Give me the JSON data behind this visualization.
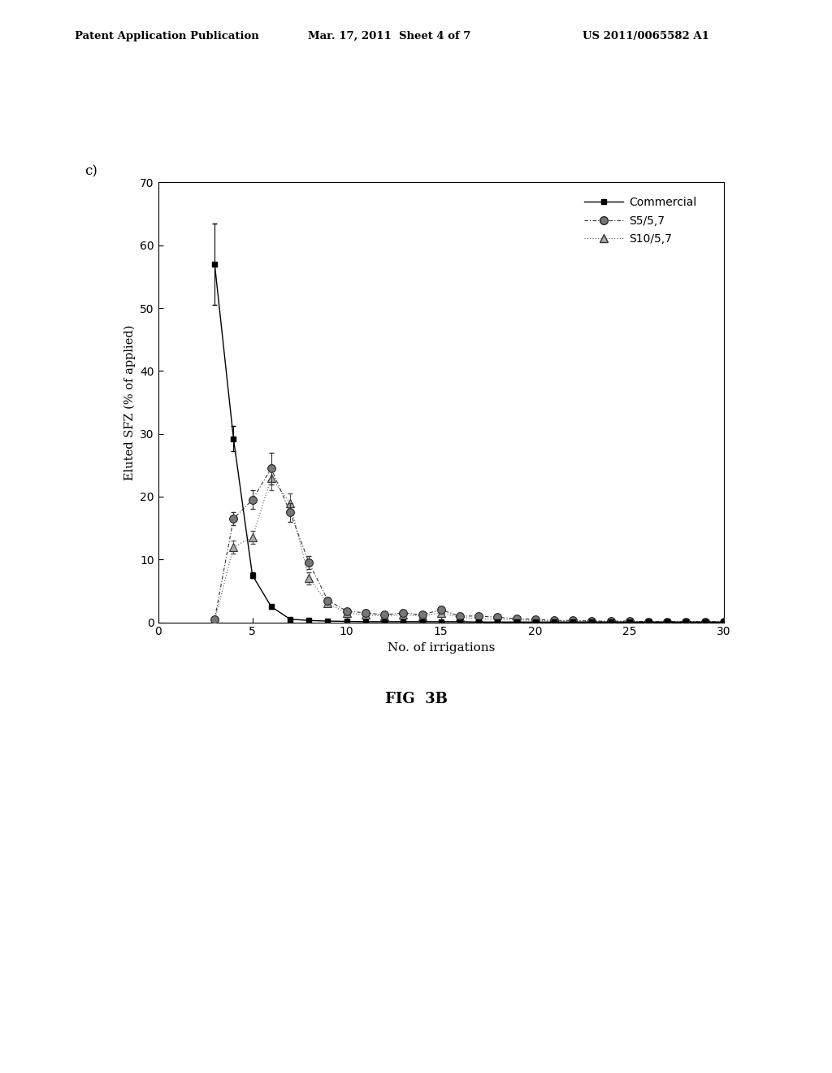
{
  "title_label": "c)",
  "xlabel": "No. of irrigations",
  "ylabel": "Eluted SFZ (% of applied)",
  "xlim": [
    2,
    30
  ],
  "ylim": [
    0,
    70
  ],
  "xticks": [
    0,
    5,
    10,
    15,
    20,
    25,
    30
  ],
  "yticks": [
    0,
    10,
    20,
    30,
    40,
    50,
    60,
    70
  ],
  "fig_label": "FIG  3B",
  "header_left": "Patent Application Publication",
  "header_mid": "Mar. 17, 2011  Sheet 4 of 7",
  "header_right": "US 2011/0065582 A1",
  "commercial": {
    "x": [
      3,
      4,
      5,
      6,
      7,
      8,
      9,
      10,
      11,
      12,
      13,
      14,
      15,
      16,
      17,
      18,
      19,
      20,
      21,
      22,
      23,
      24,
      25,
      26,
      27,
      28,
      29,
      30
    ],
    "y": [
      57.0,
      29.2,
      7.5,
      2.5,
      0.5,
      0.3,
      0.2,
      0.15,
      0.1,
      0.1,
      0.1,
      0.1,
      0.1,
      0.1,
      0.05,
      0.05,
      0.05,
      0.05,
      0.05,
      0.05,
      0.05,
      0.05,
      0.05,
      0.05,
      0.05,
      0.05,
      0.05,
      0.05
    ],
    "yerr": [
      6.5,
      2.0,
      0.5,
      0.3,
      0.0,
      0.0,
      0.0,
      0.0,
      0.0,
      0.0,
      0.0,
      0.0,
      0.0,
      0.0,
      0.0,
      0.0,
      0.0,
      0.0,
      0.0,
      0.0,
      0.0,
      0.0,
      0.0,
      0.0,
      0.0,
      0.0,
      0.0,
      0.0
    ],
    "label": "Commercial"
  },
  "s5": {
    "x": [
      3,
      4,
      5,
      6,
      7,
      8,
      9,
      10,
      11,
      12,
      13,
      14,
      15,
      16,
      17,
      18,
      19,
      20,
      21,
      22,
      23,
      24,
      25,
      26,
      27,
      28,
      29,
      30
    ],
    "y": [
      0.5,
      16.5,
      19.5,
      24.5,
      17.5,
      9.5,
      3.5,
      1.8,
      1.5,
      1.2,
      1.5,
      1.2,
      2.0,
      1.0,
      1.0,
      0.8,
      0.6,
      0.5,
      0.3,
      0.3,
      0.2,
      0.2,
      0.2,
      0.1,
      0.1,
      0.1,
      0.1,
      0.1
    ],
    "yerr": [
      0.0,
      1.0,
      1.5,
      2.5,
      1.5,
      1.0,
      0.5,
      0.3,
      0.3,
      0.3,
      0.3,
      0.3,
      0.5,
      0.0,
      0.0,
      0.0,
      0.0,
      0.0,
      0.0,
      0.0,
      0.0,
      0.0,
      0.0,
      0.0,
      0.0,
      0.0,
      0.0,
      0.0
    ],
    "label": "S5/5,7"
  },
  "s10": {
    "x": [
      3,
      4,
      5,
      6,
      7,
      8,
      9,
      10,
      11,
      12,
      13,
      14,
      15,
      16,
      17,
      18,
      19,
      20,
      21,
      22,
      23,
      24,
      25,
      26,
      27,
      28,
      29,
      30
    ],
    "y": [
      0.3,
      12.0,
      13.5,
      23.0,
      19.0,
      7.0,
      3.0,
      1.5,
      1.2,
      1.0,
      1.2,
      1.0,
      1.5,
      0.8,
      0.6,
      0.5,
      0.4,
      0.3,
      0.2,
      0.2,
      0.2,
      0.1,
      0.1,
      0.1,
      0.1,
      0.1,
      0.1,
      0.1
    ],
    "yerr": [
      0.0,
      1.0,
      1.0,
      2.0,
      1.5,
      1.0,
      0.5,
      0.3,
      0.3,
      0.2,
      0.3,
      0.2,
      0.4,
      0.0,
      0.0,
      0.0,
      0.0,
      0.0,
      0.0,
      0.0,
      0.0,
      0.0,
      0.0,
      0.0,
      0.0,
      0.0,
      0.0,
      0.0
    ],
    "label": "S10/5,7"
  }
}
